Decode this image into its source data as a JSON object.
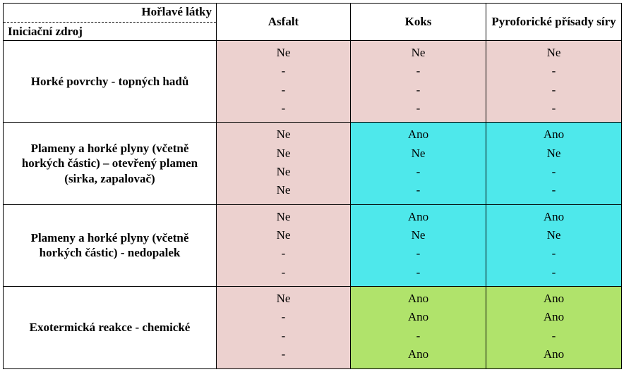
{
  "colors": {
    "pink": "#ecd1cf",
    "cyan": "#4ee8eb",
    "green": "#b0e36b",
    "white": "#ffffff"
  },
  "header": {
    "topRight": "Hořlavé látky",
    "bottomLeft": "Iniciační zdroj",
    "cols": [
      "Asfalt",
      "Koks",
      "Pyroforické přísady síry"
    ]
  },
  "rows": [
    {
      "label": "Horké povrchy - topných hadů",
      "cells": [
        {
          "bg": "pink",
          "lines": [
            "Ne",
            "-",
            "-",
            "-"
          ]
        },
        {
          "bg": "pink",
          "lines": [
            "Ne",
            "-",
            "-",
            "-"
          ]
        },
        {
          "bg": "pink",
          "lines": [
            "Ne",
            "-",
            "-",
            "-"
          ]
        }
      ]
    },
    {
      "label": "Plameny a horké plyny (včetně horkých částic) – otevřený plamen (sirka, zapalovač)",
      "cells": [
        {
          "bg": "pink",
          "lines": [
            "Ne",
            "Ne",
            "Ne",
            "Ne"
          ]
        },
        {
          "bg": "cyan",
          "lines": [
            "Ano",
            "Ne",
            "-",
            "-"
          ]
        },
        {
          "bg": "cyan",
          "lines": [
            "Ano",
            "Ne",
            "-",
            "-"
          ]
        }
      ]
    },
    {
      "label": "Plameny a horké plyny (včetně horkých částic)  - nedopalek",
      "cells": [
        {
          "bg": "pink",
          "lines": [
            "Ne",
            "Ne",
            "-",
            "-"
          ]
        },
        {
          "bg": "cyan",
          "lines": [
            "Ano",
            "Ne",
            "-",
            "-"
          ]
        },
        {
          "bg": "cyan",
          "lines": [
            "Ano",
            "Ne",
            "-",
            "-"
          ]
        }
      ]
    },
    {
      "label": "Exotermická reakce - chemické",
      "cells": [
        {
          "bg": "pink",
          "lines": [
            "Ne",
            "-",
            "-",
            "-"
          ]
        },
        {
          "bg": "green",
          "lines": [
            "Ano",
            "Ano",
            "-",
            "Ano"
          ]
        },
        {
          "bg": "green",
          "lines": [
            "Ano",
            "Ano",
            "-",
            "Ano"
          ]
        }
      ]
    }
  ]
}
